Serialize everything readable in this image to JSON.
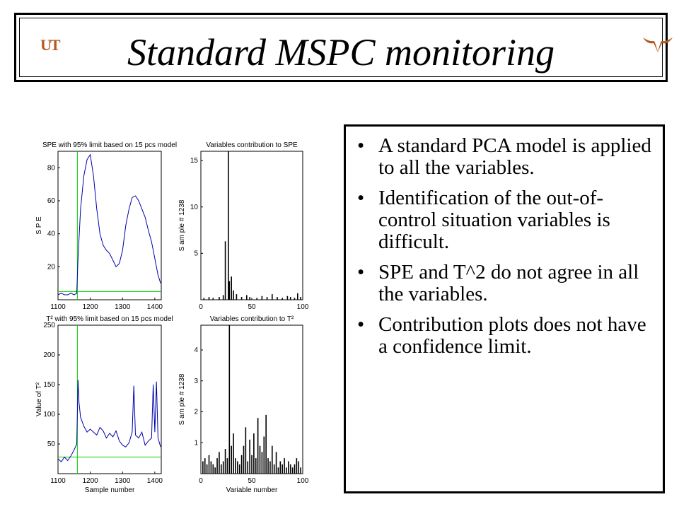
{
  "slide": {
    "title": "Standard MSPC monitoring",
    "logo_left": "UT",
    "bullets": [
      "A standard PCA model is applied to all the variables.",
      "Identification of the out-of-control situation variables is difficult.",
      "SPE and T^2 do not agree in all the variables.",
      "Contribution plots does not have a confidence limit."
    ]
  },
  "chart_data": [
    {
      "type": "line",
      "title": "SPE with 95% limit based on 15 pcs model",
      "xlabel": "",
      "ylabel": "S P E",
      "xlim": [
        1100,
        1420
      ],
      "ylim": [
        0,
        90
      ],
      "xticks": [
        1100,
        1200,
        1300,
        1400
      ],
      "yticks": [
        20,
        40,
        60,
        80
      ],
      "limit": 5,
      "fault_start": 1160,
      "colors": {
        "series": "#0000aa",
        "limit": "#00cc00"
      },
      "x": [
        1100,
        1110,
        1120,
        1130,
        1140,
        1150,
        1158,
        1162,
        1170,
        1180,
        1190,
        1200,
        1210,
        1220,
        1230,
        1240,
        1250,
        1260,
        1270,
        1280,
        1290,
        1300,
        1310,
        1320,
        1330,
        1340,
        1350,
        1360,
        1370,
        1380,
        1390,
        1400,
        1410,
        1418
      ],
      "y": [
        3,
        4,
        3,
        3,
        4,
        3,
        4,
        25,
        55,
        75,
        85,
        88,
        75,
        55,
        40,
        33,
        30,
        28,
        24,
        20,
        22,
        30,
        45,
        55,
        62,
        63,
        60,
        55,
        50,
        42,
        35,
        25,
        15,
        10
      ]
    },
    {
      "type": "bar",
      "title": "Variables contribution to SPE",
      "xlabel": "",
      "ylabel": "S am ple # 1238",
      "xlim": [
        0,
        100
      ],
      "ylim": [
        0,
        16
      ],
      "xticks": [
        0,
        50,
        100
      ],
      "yticks": [
        5,
        10,
        15
      ],
      "colors": {
        "series": "#000000"
      },
      "x": [
        3,
        8,
        12,
        18,
        22,
        24,
        27,
        28,
        30,
        32,
        35,
        40,
        45,
        48,
        55,
        60,
        65,
        70,
        75,
        80,
        85,
        88,
        92,
        95,
        98
      ],
      "y": [
        0.2,
        0.3,
        0.2,
        0.3,
        0.5,
        6.3,
        16,
        2.0,
        2.5,
        1.0,
        0.6,
        0.3,
        0.5,
        0.3,
        0.2,
        0.4,
        0.3,
        0.6,
        0.3,
        0.2,
        0.4,
        0.3,
        0.2,
        0.7,
        0.3
      ]
    },
    {
      "type": "line",
      "title": "T² with 95% limit based on 15 pcs model",
      "xlabel": "Sample number",
      "ylabel": "Value of T²",
      "xlim": [
        1100,
        1420
      ],
      "ylim": [
        0,
        250
      ],
      "xticks": [
        1100,
        1200,
        1300,
        1400
      ],
      "yticks": [
        50,
        100,
        150,
        200,
        250
      ],
      "limit": 28,
      "fault_start": 1160,
      "colors": {
        "series": "#0000aa",
        "limit": "#00cc00"
      },
      "x": [
        1100,
        1110,
        1120,
        1130,
        1140,
        1150,
        1158,
        1162,
        1165,
        1170,
        1180,
        1190,
        1200,
        1210,
        1220,
        1230,
        1240,
        1250,
        1260,
        1270,
        1280,
        1290,
        1300,
        1310,
        1320,
        1330,
        1335,
        1340,
        1350,
        1360,
        1370,
        1380,
        1390,
        1395,
        1400,
        1405,
        1410,
        1418
      ],
      "y": [
        25,
        20,
        28,
        22,
        30,
        40,
        50,
        158,
        120,
        95,
        80,
        70,
        75,
        70,
        65,
        78,
        72,
        60,
        68,
        62,
        72,
        55,
        48,
        45,
        52,
        70,
        148,
        65,
        60,
        70,
        48,
        55,
        60,
        150,
        70,
        155,
        60,
        45
      ]
    },
    {
      "type": "bar",
      "title": "Variables contribution to T²",
      "xlabel": "Variable number",
      "ylabel": "S am ple # 1238",
      "xlim": [
        0,
        100
      ],
      "ylim": [
        0,
        4.8
      ],
      "xticks": [
        0,
        50,
        100
      ],
      "yticks": [
        1,
        2,
        3,
        4
      ],
      "colors": {
        "series": "#000000"
      },
      "x": [
        2,
        4,
        6,
        8,
        10,
        12,
        14,
        16,
        18,
        20,
        22,
        24,
        26,
        28,
        30,
        32,
        34,
        36,
        38,
        40,
        42,
        44,
        46,
        48,
        50,
        52,
        54,
        56,
        58,
        60,
        62,
        64,
        66,
        68,
        70,
        72,
        74,
        76,
        78,
        80,
        82,
        84,
        86,
        88,
        90,
        92,
        94,
        96,
        98
      ],
      "y": [
        0.4,
        0.5,
        0.3,
        0.6,
        0.4,
        0.3,
        0.2,
        0.5,
        0.7,
        0.3,
        0.4,
        0.8,
        0.5,
        4.8,
        0.9,
        1.3,
        0.5,
        0.4,
        0.3,
        0.6,
        0.9,
        1.5,
        0.4,
        1.1,
        0.6,
        1.3,
        0.5,
        1.8,
        0.9,
        0.7,
        1.2,
        1.9,
        0.5,
        0.4,
        0.9,
        0.3,
        0.7,
        0.2,
        0.4,
        0.3,
        0.5,
        0.2,
        0.4,
        0.3,
        0.2,
        0.3,
        0.5,
        0.4,
        0.2
      ]
    }
  ]
}
